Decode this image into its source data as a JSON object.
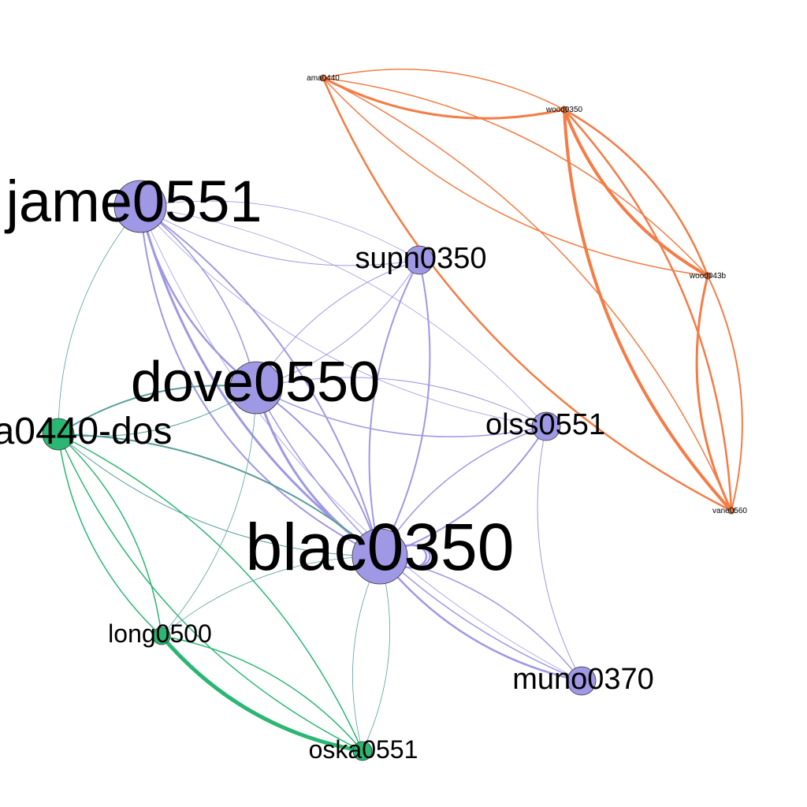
{
  "colors": {
    "purple": "#9f98e4",
    "green": "#2bb673",
    "orange": "#f47c45",
    "teal": "#5a9e9b"
  },
  "nodes": [
    {
      "id": "jame0551",
      "label": "jame0551",
      "group": "purple"
    },
    {
      "id": "dove0550",
      "label": "dove0550",
      "group": "purple"
    },
    {
      "id": "blac0350",
      "label": "blac0350",
      "group": "purple"
    },
    {
      "id": "supn0350",
      "label": "supn0350",
      "group": "purple"
    },
    {
      "id": "olss0551",
      "label": "olss0551",
      "group": "purple"
    },
    {
      "id": "muno0370",
      "label": "muno0370",
      "group": "purple"
    },
    {
      "id": "a0440-dos",
      "label": "a0440-dos",
      "group": "green"
    },
    {
      "id": "long0500",
      "label": "long0500",
      "group": "green"
    },
    {
      "id": "oska0551",
      "label": "oska0551",
      "group": "green"
    },
    {
      "id": "ama0440",
      "label": "ama0440",
      "group": "orange"
    },
    {
      "id": "wood0350",
      "label": "wood0350",
      "group": "orange"
    },
    {
      "id": "wood043b",
      "label": "wood043b",
      "group": "orange"
    },
    {
      "id": "vane0560",
      "label": "vane0560",
      "group": "orange"
    }
  ],
  "edges": [
    {
      "source": "jame0551",
      "target": "dove0550",
      "color": "purple",
      "weight": 2.5
    },
    {
      "source": "jame0551",
      "target": "dove0550",
      "color": "purple",
      "weight": 1.5
    },
    {
      "source": "jame0551",
      "target": "blac0350",
      "color": "purple",
      "weight": 3
    },
    {
      "source": "jame0551",
      "target": "blac0350",
      "color": "purple",
      "weight": 2
    },
    {
      "source": "jame0551",
      "target": "blac0350",
      "color": "purple",
      "weight": 2
    },
    {
      "source": "jame0551",
      "target": "supn0350",
      "color": "purple",
      "weight": 1
    },
    {
      "source": "jame0551",
      "target": "supn0350",
      "color": "purple",
      "weight": 0.8
    },
    {
      "source": "jame0551",
      "target": "olss0551",
      "color": "purple",
      "weight": 0.8
    },
    {
      "source": "jame0551",
      "target": "olss0551",
      "color": "purple",
      "weight": 0.8
    },
    {
      "source": "jame0551",
      "target": "muno0370",
      "color": "purple",
      "weight": 0.8
    },
    {
      "source": "jame0551",
      "target": "a0440-dos",
      "color": "teal",
      "weight": 0.8
    },
    {
      "source": "dove0550",
      "target": "blac0350",
      "color": "purple",
      "weight": 3
    },
    {
      "source": "dove0550",
      "target": "blac0350",
      "color": "purple",
      "weight": 2
    },
    {
      "source": "dove0550",
      "target": "supn0350",
      "color": "purple",
      "weight": 1
    },
    {
      "source": "dove0550",
      "target": "supn0350",
      "color": "purple",
      "weight": 1
    },
    {
      "source": "dove0550",
      "target": "olss0551",
      "color": "purple",
      "weight": 1.5
    },
    {
      "source": "dove0550",
      "target": "olss0551",
      "color": "purple",
      "weight": 1
    },
    {
      "source": "dove0550",
      "target": "muno0370",
      "color": "purple",
      "weight": 1.5
    },
    {
      "source": "dove0550",
      "target": "a0440-dos",
      "color": "teal",
      "weight": 2
    },
    {
      "source": "dove0550",
      "target": "a0440-dos",
      "color": "teal",
      "weight": 1
    },
    {
      "source": "blac0350",
      "target": "supn0350",
      "color": "purple",
      "weight": 2
    },
    {
      "source": "blac0350",
      "target": "supn0350",
      "color": "purple",
      "weight": 2
    },
    {
      "source": "blac0350",
      "target": "olss0551",
      "color": "purple",
      "weight": 2
    },
    {
      "source": "blac0350",
      "target": "olss0551",
      "color": "purple",
      "weight": 1.5
    },
    {
      "source": "blac0350",
      "target": "muno0370",
      "color": "purple",
      "weight": 2.5
    },
    {
      "source": "blac0350",
      "target": "muno0370",
      "color": "purple",
      "weight": 1.5
    },
    {
      "source": "blac0350",
      "target": "a0440-dos",
      "color": "teal",
      "weight": 2
    },
    {
      "source": "blac0350",
      "target": "a0440-dos",
      "color": "teal",
      "weight": 1
    },
    {
      "source": "blac0350",
      "target": "long0500",
      "color": "teal",
      "weight": 0.8
    },
    {
      "source": "blac0350",
      "target": "oska0551",
      "color": "teal",
      "weight": 0.8
    },
    {
      "source": "blac0350",
      "target": "oska0551",
      "color": "teal",
      "weight": 0.8
    },
    {
      "source": "olss0551",
      "target": "muno0370",
      "color": "purple",
      "weight": 1
    },
    {
      "source": "a0440-dos",
      "target": "long0500",
      "color": "green",
      "weight": 1.5
    },
    {
      "source": "a0440-dos",
      "target": "long0500",
      "color": "green",
      "weight": 1.5
    },
    {
      "source": "a0440-dos",
      "target": "oska0551",
      "color": "green",
      "weight": 1.5
    },
    {
      "source": "a0440-dos",
      "target": "oska0551",
      "color": "green",
      "weight": 1.5
    },
    {
      "source": "long0500",
      "target": "oska0551",
      "color": "green",
      "weight": 5
    },
    {
      "source": "long0500",
      "target": "oska0551",
      "color": "green",
      "weight": 1.5
    },
    {
      "source": "long0500",
      "target": "dove0550",
      "color": "teal",
      "weight": 0.8
    },
    {
      "source": "ama0440",
      "target": "wood0350",
      "color": "orange",
      "weight": 3
    },
    {
      "source": "ama0440",
      "target": "wood0350",
      "color": "orange",
      "weight": 1.5
    },
    {
      "source": "ama0440",
      "target": "wood043b",
      "color": "orange",
      "weight": 1.5
    },
    {
      "source": "ama0440",
      "target": "wood043b",
      "color": "orange",
      "weight": 1.5
    },
    {
      "source": "ama0440",
      "target": "vane0560",
      "color": "orange",
      "weight": 2.5
    },
    {
      "source": "ama0440",
      "target": "vane0560",
      "color": "orange",
      "weight": 1.5
    },
    {
      "source": "wood0350",
      "target": "wood043b",
      "color": "orange",
      "weight": 4
    },
    {
      "source": "wood0350",
      "target": "wood043b",
      "color": "orange",
      "weight": 2.5
    },
    {
      "source": "wood0350",
      "target": "vane0560",
      "color": "orange",
      "weight": 4
    },
    {
      "source": "wood0350",
      "target": "vane0560",
      "color": "orange",
      "weight": 2.5
    },
    {
      "source": "wood043b",
      "target": "vane0560",
      "color": "orange",
      "weight": 3
    },
    {
      "source": "wood043b",
      "target": "vane0560",
      "color": "orange",
      "weight": 2
    }
  ]
}
